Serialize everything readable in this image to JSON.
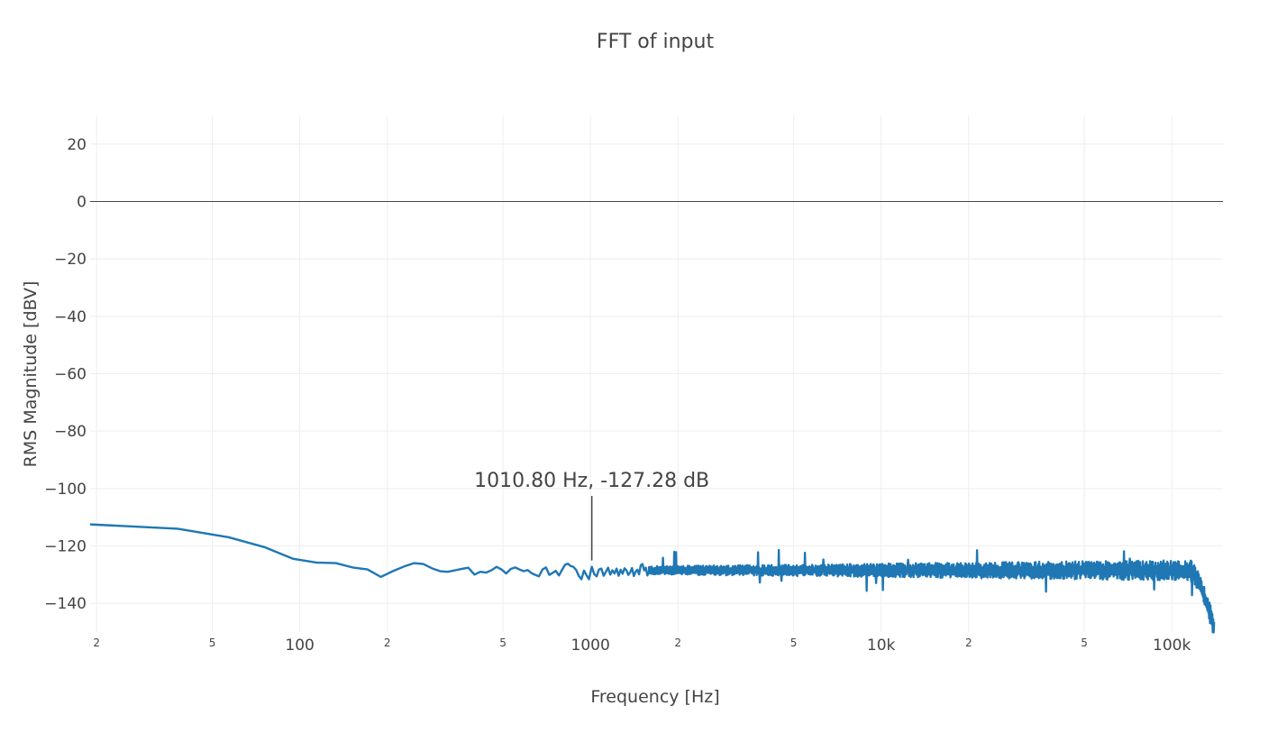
{
  "chart_data": {
    "type": "line",
    "title": "FFT of input",
    "xlabel": "Frequency [Hz]",
    "ylabel": "RMS Magnitude [dBV]",
    "x_scale": "log",
    "xlim": [
      19,
      150000
    ],
    "ylim": [
      -150,
      30
    ],
    "grid": true,
    "legend": "none",
    "line_color": "#1f77b4",
    "zero_line_color": "#444444",
    "grid_color": "#eeeeee",
    "x_ticks": [
      {
        "value": 20,
        "label": "2",
        "minor": true
      },
      {
        "value": 50,
        "label": "5",
        "minor": true
      },
      {
        "value": 100,
        "label": "100",
        "minor": false
      },
      {
        "value": 200,
        "label": "2",
        "minor": true
      },
      {
        "value": 500,
        "label": "5",
        "minor": true
      },
      {
        "value": 1000,
        "label": "1000",
        "minor": false
      },
      {
        "value": 2000,
        "label": "2",
        "minor": true
      },
      {
        "value": 5000,
        "label": "5",
        "minor": true
      },
      {
        "value": 10000,
        "label": "10k",
        "minor": false
      },
      {
        "value": 20000,
        "label": "2",
        "minor": true
      },
      {
        "value": 50000,
        "label": "5",
        "minor": true
      },
      {
        "value": 100000,
        "label": "100k",
        "minor": false
      }
    ],
    "y_ticks": [
      {
        "value": 20,
        "label": "20"
      },
      {
        "value": 0,
        "label": "0"
      },
      {
        "value": -20,
        "label": "−20"
      },
      {
        "value": -40,
        "label": "−40"
      },
      {
        "value": -60,
        "label": "−60"
      },
      {
        "value": -80,
        "label": "−80"
      },
      {
        "value": -100,
        "label": "−100"
      },
      {
        "value": -120,
        "label": "−120"
      },
      {
        "value": -140,
        "label": "−140"
      }
    ],
    "series": [
      {
        "x": [
          19,
          38,
          57,
          76,
          95,
          114,
          133,
          152,
          171,
          190,
          209,
          228,
          247,
          266,
          285,
          304,
          323,
          342,
          361,
          380,
          399,
          418,
          437,
          456,
          475,
          494,
          513,
          532,
          551,
          570,
          589,
          608,
          627,
          646,
          665,
          684,
          703,
          722,
          741,
          760,
          779,
          798,
          817,
          836,
          855,
          874,
          893,
          912,
          931,
          950,
          969,
          988,
          1010.8,
          1030,
          1050,
          1070,
          1090,
          1110,
          1130,
          1150,
          1170,
          1190,
          1210,
          1230,
          1250,
          1270,
          1290,
          1310,
          1330,
          1350,
          1370,
          1390,
          1410,
          1430,
          1450,
          1470,
          1490,
          1510,
          1530,
          1550,
          1570,
          1590
        ],
        "y": [
          -112.5,
          -114.0,
          -117.0,
          -120.5,
          -124.5,
          -125.8,
          -126.0,
          -127.5,
          -128.2,
          -130.8,
          -128.8,
          -127.2,
          -126.0,
          -126.3,
          -127.8,
          -128.8,
          -129.0,
          -128.5,
          -128.0,
          -127.6,
          -130.0,
          -129.0,
          -129.3,
          -128.5,
          -127.3,
          -128.2,
          -129.6,
          -128.0,
          -127.5,
          -128.2,
          -128.8,
          -128.4,
          -129.5,
          -130.1,
          -130.6,
          -128.2,
          -127.5,
          -130.1,
          -129.4,
          -128.7,
          -130.3,
          -128.4,
          -126.6,
          -126.2,
          -127.0,
          -127.3,
          -128.4,
          -130.5,
          -131.6,
          -128.6,
          -130.2,
          -131.6,
          -127.28,
          -129.8,
          -130.6,
          -128.2,
          -127.9,
          -130.4,
          -129.0,
          -127.6,
          -130.0,
          -128.5,
          -129.6,
          -127.9,
          -130.4,
          -128.3,
          -129.7,
          -127.8,
          -128.5,
          -130.1,
          -129.2,
          -127.7,
          -130.5,
          -129.0,
          -128.3,
          -129.9,
          -126.7,
          -126.3,
          -128.5,
          -127.6,
          -130.3,
          -128.8
        ]
      }
    ],
    "noise_band": {
      "f_start": 1590,
      "f_corner": 115000,
      "f_end": 140000,
      "start_db": -128.5,
      "end_db": -149.0,
      "spread_db": 2.4,
      "spike_db": 5.5
    },
    "annotation": {
      "text": "1010.80 Hz, -127.28 dB",
      "x": 1010.8,
      "y": -127.28
    }
  }
}
